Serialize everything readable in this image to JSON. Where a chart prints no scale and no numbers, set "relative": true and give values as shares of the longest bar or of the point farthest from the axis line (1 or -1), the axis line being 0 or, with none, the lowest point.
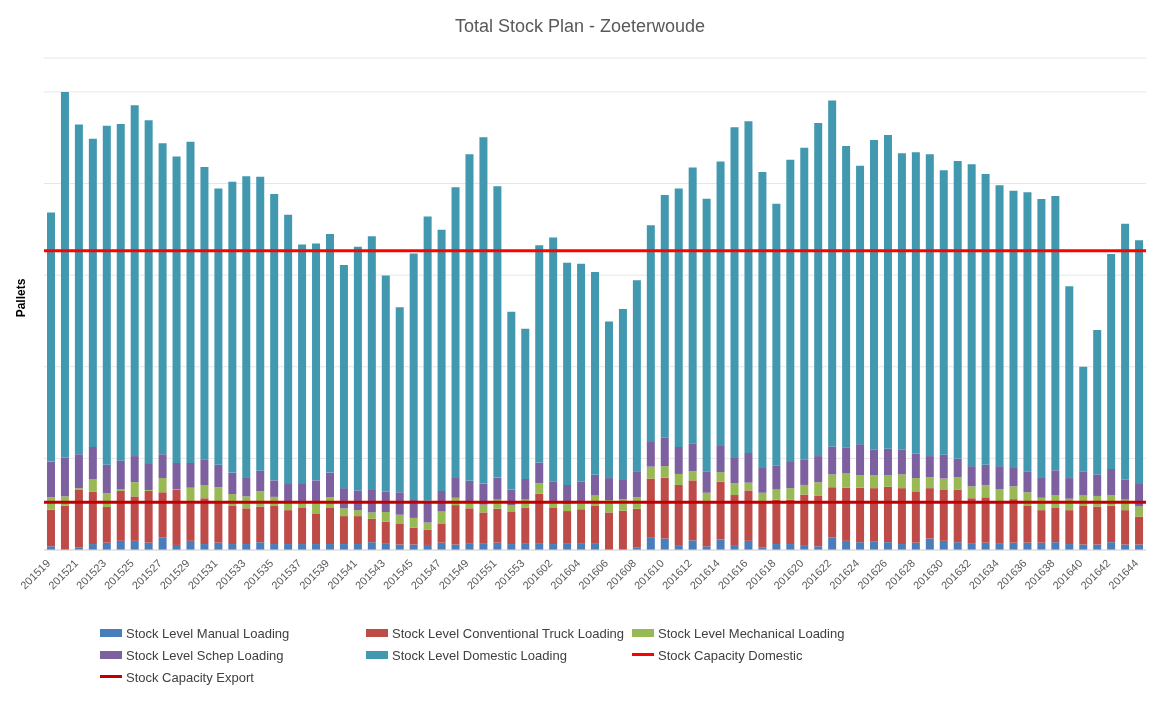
{
  "chart_data": {
    "type": "bar",
    "title": "Total Stock Plan - Zoeterwoude",
    "ylabel": "Pallets",
    "relative": true,
    "stacked": true,
    "grid": "y",
    "legend": "bottom",
    "categories": [
      "201519",
      null,
      "201521",
      null,
      "201523",
      null,
      "201525",
      null,
      "201527",
      null,
      "201529",
      null,
      "201531",
      null,
      "201533",
      null,
      "201535",
      null,
      "201537",
      null,
      "201539",
      null,
      "201541",
      null,
      "201543",
      null,
      "201545",
      null,
      "201547",
      null,
      "201549",
      null,
      "201551",
      null,
      "201553",
      null,
      "201602",
      null,
      "201604",
      null,
      "201606",
      null,
      "201608",
      null,
      "201610",
      null,
      "201612",
      null,
      "201614",
      null,
      "201616",
      null,
      "201618",
      null,
      "201620",
      null,
      "201622",
      null,
      "201624",
      null,
      "201626",
      null,
      "201628",
      null,
      "201630",
      null,
      "201632",
      null,
      "201634",
      null,
      "201636",
      null,
      "201638",
      null,
      "201640",
      null,
      "201642",
      null,
      "201644"
    ],
    "series": [
      {
        "name": "Stock Level Manual Loading",
        "color": "#4a7ebb",
        "values": [
          0.008,
          null,
          0.006,
          0.013,
          0.016,
          0.02,
          0.02,
          0.016,
          0.027,
          0.011,
          0.02,
          0.013,
          0.016,
          0.013,
          0.013,
          0.017,
          0.013,
          0.013,
          0.013,
          0.013,
          0.013,
          0.013,
          0.013,
          0.017,
          0.015,
          0.012,
          0.012,
          0.011,
          0.016,
          0.012,
          0.015,
          0.015,
          0.016,
          0.013,
          0.015,
          0.015,
          0.013,
          0.015,
          0.015,
          0.015,
          null,
          null,
          0.006,
          0.028,
          0.025,
          0.009,
          0.021,
          0.008,
          0.023,
          0.009,
          0.02,
          0.006,
          0.013,
          0.013,
          0.009,
          0.008,
          0.027,
          0.02,
          0.017,
          0.018,
          0.017,
          0.013,
          0.016,
          0.025,
          0.02,
          0.017,
          0.015,
          0.016,
          0.015,
          0.016,
          0.016,
          0.016,
          0.017,
          0.013,
          0.012,
          0.012,
          0.017,
          0.012,
          0.012
        ]
      },
      {
        "name": "Stock Level Conventional Truck Loading",
        "color": "#be4b48",
        "values": [
          0.08,
          0.097,
          0.125,
          0.114,
          0.078,
          0.109,
          0.097,
          0.113,
          0.099,
          0.12,
          0.082,
          0.1,
          0.088,
          0.083,
          0.078,
          0.078,
          0.083,
          0.074,
          0.08,
          0.067,
          0.08,
          0.061,
          0.061,
          0.051,
          0.047,
          0.046,
          0.037,
          0.033,
          0.042,
          0.086,
          0.076,
          0.067,
          0.074,
          0.07,
          0.077,
          0.108,
          0.08,
          0.07,
          0.074,
          0.081,
          0.082,
          0.086,
          0.084,
          0.128,
          0.133,
          0.133,
          0.131,
          0.097,
          0.126,
          0.111,
          0.11,
          0.1,
          0.097,
          0.097,
          0.112,
          0.11,
          0.11,
          0.116,
          0.119,
          0.117,
          0.121,
          0.122,
          0.112,
          0.11,
          0.111,
          0.115,
          0.098,
          0.099,
          0.09,
          0.095,
          0.08,
          0.071,
          0.076,
          0.074,
          0.084,
          0.083,
          0.08,
          0.075,
          0.061
        ]
      },
      {
        "name": "Stock Level Mechanical Loading",
        "color": "#98b954",
        "values": [
          0.027,
          0.02,
          0.004,
          0.027,
          0.03,
          0.003,
          0.031,
          0.002,
          0.031,
          0.002,
          0.034,
          0.028,
          0.033,
          0.026,
          0.026,
          0.033,
          0.02,
          0.018,
          0.011,
          0.023,
          0.022,
          0.017,
          0.013,
          0.014,
          0.021,
          0.019,
          0.021,
          0.016,
          0.026,
          0.016,
          0.012,
          0.017,
          0.02,
          0.015,
          0.018,
          0.023,
          0.009,
          0.015,
          0.013,
          0.023,
          0.027,
          0.025,
          0.025,
          0.026,
          0.025,
          0.024,
          0.02,
          0.02,
          0.021,
          0.026,
          0.017,
          0.019,
          0.022,
          0.025,
          0.021,
          0.03,
          0.028,
          0.031,
          0.027,
          0.028,
          0.025,
          0.03,
          0.029,
          0.024,
          0.025,
          0.027,
          0.026,
          0.027,
          0.028,
          0.028,
          0.03,
          0.027,
          0.027,
          0.025,
          0.023,
          0.023,
          0.023,
          0.023,
          0.022
        ]
      },
      {
        "name": "Stock Level Schep Loading",
        "color": "#7d60a0",
        "values": [
          0.078,
          0.085,
          0.074,
          0.071,
          0.062,
          0.063,
          0.057,
          0.057,
          0.052,
          0.057,
          0.054,
          0.057,
          0.049,
          0.047,
          0.042,
          0.045,
          0.036,
          0.039,
          0.042,
          0.049,
          0.054,
          0.044,
          0.043,
          0.049,
          0.044,
          0.049,
          0.041,
          0.048,
          0.045,
          0.045,
          0.048,
          0.046,
          0.048,
          0.034,
          0.045,
          0.045,
          0.048,
          0.042,
          0.047,
          0.045,
          0.048,
          0.042,
          0.057,
          0.054,
          0.063,
          0.059,
          0.061,
          0.046,
          0.057,
          0.055,
          0.065,
          0.054,
          0.052,
          0.059,
          0.056,
          0.057,
          0.061,
          0.057,
          0.068,
          0.056,
          0.058,
          0.054,
          0.053,
          0.046,
          0.052,
          0.04,
          0.044,
          0.044,
          0.05,
          0.04,
          0.045,
          0.045,
          0.054,
          0.045,
          0.052,
          0.047,
          0.057,
          0.044,
          0.051
        ]
      },
      {
        "name": "Stock Level Domestic Loading",
        "color": "#4198af",
        "values": [
          0.544,
          0.798,
          0.72,
          0.673,
          0.74,
          0.735,
          0.766,
          0.75,
          0.679,
          0.669,
          0.701,
          0.638,
          0.603,
          0.635,
          0.657,
          0.642,
          0.625,
          0.588,
          0.521,
          0.517,
          0.521,
          0.487,
          0.532,
          0.554,
          0.472,
          0.404,
          0.536,
          0.62,
          0.57,
          0.633,
          0.713,
          0.756,
          0.636,
          0.388,
          0.328,
          0.474,
          0.532,
          0.485,
          0.476,
          0.443,
          0.342,
          0.373,
          0.417,
          0.473,
          0.529,
          0.564,
          0.602,
          0.596,
          0.621,
          0.722,
          0.724,
          0.646,
          0.572,
          0.658,
          0.68,
          0.727,
          0.755,
          0.658,
          0.608,
          0.676,
          0.685,
          0.647,
          0.658,
          0.659,
          0.621,
          0.65,
          0.659,
          0.635,
          0.613,
          0.605,
          0.61,
          0.607,
          0.599,
          0.419,
          0.229,
          0.315,
          0.469,
          0.558,
          0.53
        ]
      }
    ],
    "ref_lines": [
      {
        "axis": "y",
        "value": 0.653,
        "label": "Stock Capacity Domestic",
        "color": "#ff0000"
      },
      {
        "axis": "y",
        "value": 0.104,
        "label": "Stock Capacity Export",
        "color": "#c00000"
      }
    ]
  }
}
